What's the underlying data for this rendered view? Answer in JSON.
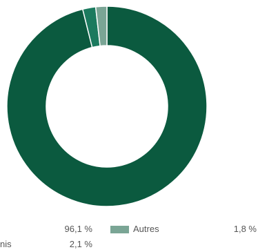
{
  "chart_data": {
    "type": "pie",
    "donut": true,
    "title": "",
    "slices": [
      {
        "label": "",
        "value": 96.1,
        "value_label": "96,1 %",
        "color": "#0b5a3f"
      },
      {
        "label": "",
        "value": 2.1,
        "value_label": "2,1 %",
        "color": "#1b7a5e"
      },
      {
        "label": "Autres",
        "value": 1.8,
        "value_label": "1,8 %",
        "color": "#7aa595"
      }
    ],
    "legend": {
      "placement": "bottom",
      "items": [
        {
          "label": "",
          "value_label": "96,1 %",
          "color": "#0b5a3f"
        },
        {
          "label": "nis",
          "value_label": "2,1 %",
          "color": "#1b7a5e"
        },
        {
          "label": "Autres",
          "value_label": "1,8 %",
          "color": "#7aa595"
        }
      ]
    }
  }
}
